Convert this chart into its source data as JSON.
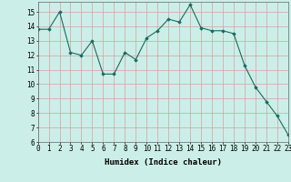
{
  "xlabel": "Humidex (Indice chaleur)",
  "x": [
    0,
    1,
    2,
    3,
    4,
    5,
    6,
    7,
    8,
    9,
    10,
    11,
    12,
    13,
    14,
    15,
    16,
    17,
    18,
    19,
    20,
    21,
    22,
    23
  ],
  "y": [
    13.8,
    13.8,
    15.0,
    12.2,
    12.0,
    13.0,
    10.7,
    10.7,
    12.2,
    11.7,
    13.2,
    13.7,
    14.5,
    14.3,
    15.5,
    13.9,
    13.7,
    13.7,
    13.5,
    11.3,
    9.8,
    8.8,
    7.8,
    6.5
  ],
  "ylim": [
    6,
    15.7
  ],
  "xlim": [
    0,
    23
  ],
  "yticks": [
    6,
    7,
    8,
    9,
    10,
    11,
    12,
    13,
    14,
    15
  ],
  "xticks": [
    0,
    1,
    2,
    3,
    4,
    5,
    6,
    7,
    8,
    9,
    10,
    11,
    12,
    13,
    14,
    15,
    16,
    17,
    18,
    19,
    20,
    21,
    22,
    23
  ],
  "line_color": "#1a6b5e",
  "marker": "D",
  "marker_size": 1.8,
  "bg_color": "#cceee8",
  "grid_color": "#d4a0a0",
  "xlabel_fontsize": 6.5,
  "tick_fontsize": 5.5,
  "line_width": 0.8
}
